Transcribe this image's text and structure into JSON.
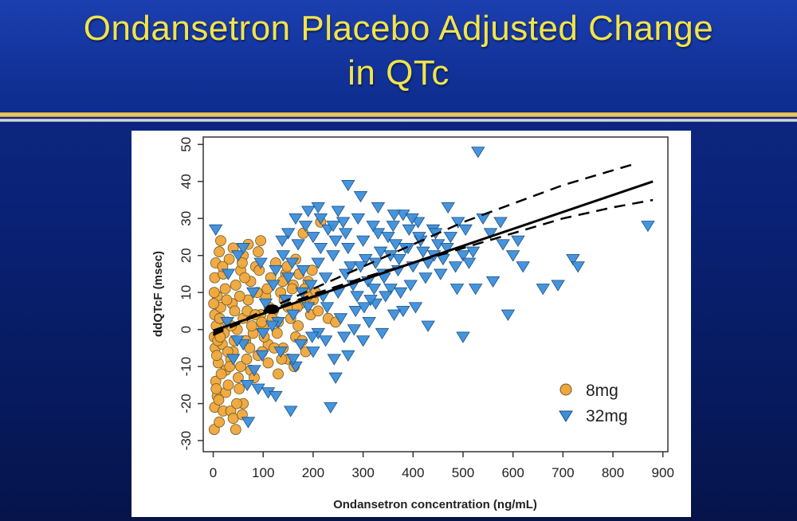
{
  "slide": {
    "title_line1": "Ondansetron Placebo Adjusted Change",
    "title_line2": "in QTc"
  },
  "colors": {
    "title_text": "#f2e44a",
    "series_8mg": "#f0a63a",
    "series_32mg": "#3b8fdc",
    "marker_edge": "#6b5a2a",
    "regression": "#000000"
  },
  "chart_data": {
    "type": "scatter",
    "xlabel": "Ondansetron concentration (ng/mL)",
    "ylabel": "ddQTcF (msec)",
    "xlim": [
      -20,
      910
    ],
    "ylim": [
      -33,
      52
    ],
    "xticks": [
      0,
      100,
      200,
      300,
      400,
      500,
      600,
      700,
      800,
      900
    ],
    "yticks": [
      -30,
      -20,
      -10,
      0,
      10,
      20,
      30,
      40,
      50
    ],
    "legend_position": "bottom-right",
    "series": [
      {
        "name": "8mg",
        "marker": "circle",
        "points": [
          [
            2,
            -27
          ],
          [
            45,
            -27
          ],
          [
            3,
            -21
          ],
          [
            20,
            -22
          ],
          [
            35,
            -22
          ],
          [
            8,
            -18
          ],
          [
            25,
            -17
          ],
          [
            60,
            -20
          ],
          [
            5,
            -14
          ],
          [
            30,
            -15
          ],
          [
            50,
            -13
          ],
          [
            75,
            -11
          ],
          [
            10,
            -9
          ],
          [
            35,
            -8
          ],
          [
            55,
            -10
          ],
          [
            90,
            -7
          ],
          [
            4,
            -5
          ],
          [
            18,
            -4
          ],
          [
            40,
            -6
          ],
          [
            65,
            -3
          ],
          [
            110,
            -4
          ],
          [
            140,
            -5
          ],
          [
            2,
            -2
          ],
          [
            22,
            -1
          ],
          [
            48,
            0
          ],
          [
            80,
            -1
          ],
          [
            100,
            1
          ],
          [
            130,
            2
          ],
          [
            165,
            -2
          ],
          [
            6,
            1
          ],
          [
            28,
            2
          ],
          [
            60,
            3
          ],
          [
            95,
            4
          ],
          [
            120,
            5
          ],
          [
            150,
            6
          ],
          [
            175,
            7
          ],
          [
            200,
            8
          ],
          [
            3,
            4
          ],
          [
            15,
            6
          ],
          [
            38,
            7
          ],
          [
            70,
            8
          ],
          [
            105,
            9
          ],
          [
            135,
            10
          ],
          [
            160,
            12
          ],
          [
            190,
            13
          ],
          [
            8,
            9
          ],
          [
            24,
            11
          ],
          [
            45,
            12
          ],
          [
            75,
            13
          ],
          [
            115,
            14
          ],
          [
            145,
            15
          ],
          [
            3,
            14
          ],
          [
            20,
            15
          ],
          [
            55,
            16
          ],
          [
            85,
            17
          ],
          [
            125,
            18
          ],
          [
            165,
            19
          ],
          [
            5,
            18
          ],
          [
            32,
            19
          ],
          [
            60,
            20
          ],
          [
            90,
            21
          ],
          [
            12,
            21
          ],
          [
            40,
            22
          ],
          [
            70,
            23
          ],
          [
            15,
            24
          ],
          [
            95,
            24
          ],
          [
            180,
            26
          ],
          [
            215,
            29
          ],
          [
            25,
            -11
          ],
          [
            110,
            -9
          ],
          [
            130,
            -12
          ],
          [
            150,
            -8
          ],
          [
            185,
            -6
          ],
          [
            12,
            -25
          ],
          [
            40,
            -24
          ],
          [
            58,
            -23
          ],
          [
            7,
            -7
          ],
          [
            16,
            -12
          ],
          [
            42,
            -3
          ],
          [
            68,
            5
          ],
          [
            88,
            10
          ],
          [
            102,
            -2
          ],
          [
            118,
            3
          ],
          [
            142,
            8
          ],
          [
            170,
            1
          ],
          [
            195,
            4
          ],
          [
            6,
            -16
          ],
          [
            27,
            8
          ],
          [
            52,
            -16
          ],
          [
            82,
            -13
          ],
          [
            13,
            3
          ],
          [
            33,
            -10
          ],
          [
            63,
            14
          ],
          [
            98,
            -6
          ],
          [
            128,
            -1
          ],
          [
            158,
            11
          ],
          [
            178,
            -3
          ],
          [
            205,
            10
          ],
          [
            2,
            10
          ],
          [
            9,
            -3
          ],
          [
            19,
            17
          ],
          [
            36,
            1
          ],
          [
            47,
            -20
          ],
          [
            77,
            1
          ],
          [
            92,
            16
          ],
          [
            112,
            6
          ],
          [
            137,
            -8
          ],
          [
            155,
            3
          ],
          [
            172,
            15
          ],
          [
            188,
            9
          ],
          [
            210,
            5
          ],
          [
            230,
            3
          ],
          [
            245,
            2
          ],
          [
            1,
            7
          ],
          [
            11,
            -19
          ],
          [
            29,
            -6
          ],
          [
            53,
            9
          ],
          [
            67,
            -8
          ],
          [
            84,
            4
          ],
          [
            108,
            11
          ],
          [
            122,
            -5
          ],
          [
            148,
            17
          ],
          [
            168,
            6
          ],
          [
            183,
            11
          ],
          [
            14,
            -2
          ],
          [
            43,
            5
          ],
          [
            58,
            18
          ],
          [
            73,
            -5
          ],
          [
            97,
            2
          ],
          [
            139,
            13
          ],
          [
            162,
            -10
          ],
          [
            198,
            16
          ]
        ]
      },
      {
        "name": "32mg",
        "marker": "triangle-down",
        "points": [
          [
            530,
            48
          ],
          [
            270,
            39
          ],
          [
            295,
            36
          ],
          [
            210,
            33
          ],
          [
            250,
            32
          ],
          [
            470,
            33
          ],
          [
            540,
            30
          ],
          [
            575,
            29
          ],
          [
            870,
            28
          ],
          [
            5,
            27
          ],
          [
            150,
            26
          ],
          [
            380,
            31
          ],
          [
            410,
            29
          ],
          [
            440,
            27
          ],
          [
            490,
            29
          ],
          [
            580,
            23
          ],
          [
            600,
            20
          ],
          [
            620,
            17
          ],
          [
            690,
            12
          ],
          [
            720,
            19
          ],
          [
            730,
            17
          ],
          [
            660,
            11
          ],
          [
            560,
            13
          ],
          [
            525,
            11
          ],
          [
            590,
            4
          ],
          [
            430,
            1
          ],
          [
            500,
            -2
          ],
          [
            380,
            5
          ],
          [
            355,
            11
          ],
          [
            325,
            7
          ],
          [
            300,
            -3
          ],
          [
            270,
            -7
          ],
          [
            245,
            -13
          ],
          [
            235,
            -21
          ],
          [
            155,
            -22
          ],
          [
            70,
            -25
          ],
          [
            90,
            -16
          ],
          [
            110,
            -17
          ],
          [
            125,
            -18
          ],
          [
            165,
            -10
          ],
          [
            200,
            -6
          ],
          [
            225,
            -3
          ],
          [
            40,
            -8
          ],
          [
            60,
            -4
          ],
          [
            100,
            -1
          ],
          [
            130,
            2
          ],
          [
            160,
            4
          ],
          [
            190,
            6
          ],
          [
            220,
            9
          ],
          [
            250,
            10
          ],
          [
            280,
            12
          ],
          [
            310,
            13
          ],
          [
            340,
            15
          ],
          [
            370,
            16
          ],
          [
            400,
            17
          ],
          [
            430,
            18
          ],
          [
            460,
            19
          ],
          [
            500,
            20
          ],
          [
            520,
            21
          ],
          [
            120,
            12
          ],
          [
            150,
            14
          ],
          [
            180,
            16
          ],
          [
            210,
            18
          ],
          [
            240,
            20
          ],
          [
            270,
            22
          ],
          [
            300,
            24
          ],
          [
            330,
            26
          ],
          [
            360,
            28
          ],
          [
            390,
            22
          ],
          [
            420,
            21
          ],
          [
            450,
            23
          ],
          [
            200,
            25
          ],
          [
            230,
            27
          ],
          [
            260,
            29
          ],
          [
            290,
            30
          ],
          [
            320,
            28
          ],
          [
            350,
            25
          ],
          [
            140,
            20
          ],
          [
            170,
            23
          ],
          [
            185,
            28
          ],
          [
            215,
            22
          ],
          [
            245,
            24
          ],
          [
            275,
            17
          ],
          [
            305,
            19
          ],
          [
            335,
            21
          ],
          [
            365,
            23
          ],
          [
            395,
            12
          ],
          [
            425,
            14
          ],
          [
            455,
            15
          ],
          [
            485,
            17
          ],
          [
            30,
            15
          ],
          [
            50,
            20
          ],
          [
            80,
            10
          ],
          [
            105,
            7
          ],
          [
            135,
            -6
          ],
          [
            160,
            -8
          ],
          [
            175,
            -4
          ],
          [
            210,
            -1
          ],
          [
            255,
            3
          ],
          [
            285,
            5
          ],
          [
            315,
            8
          ],
          [
            345,
            9
          ],
          [
            375,
            10
          ],
          [
            405,
            6
          ],
          [
            60,
            22
          ],
          [
            95,
            18
          ],
          [
            125,
            16
          ],
          [
            145,
            8
          ],
          [
            195,
            12
          ],
          [
            225,
            14
          ],
          [
            265,
            15
          ],
          [
            295,
            17
          ],
          [
            325,
            18
          ],
          [
            355,
            20
          ],
          [
            385,
            22
          ],
          [
            415,
            24
          ],
          [
            445,
            26
          ],
          [
            475,
            25
          ],
          [
            505,
            27
          ],
          [
            555,
            26
          ],
          [
            610,
            24
          ],
          [
            165,
            30
          ],
          [
            190,
            32
          ],
          [
            215,
            30
          ],
          [
            240,
            28
          ],
          [
            330,
            33
          ],
          [
            362,
            31
          ],
          [
            398,
            30
          ],
          [
            265,
            26
          ],
          [
            288,
            9
          ],
          [
            312,
            2
          ],
          [
            338,
            -1
          ],
          [
            362,
            4
          ],
          [
            228,
            6
          ],
          [
            198,
            -2
          ],
          [
            178,
            10
          ],
          [
            158,
            18
          ],
          [
            138,
            24
          ],
          [
            118,
            1
          ],
          [
            98,
            -7
          ],
          [
            82,
            -11
          ],
          [
            68,
            -15
          ],
          [
            48,
            -3
          ],
          [
            28,
            2
          ],
          [
            242,
            -8
          ],
          [
            262,
            -2
          ],
          [
            282,
            0
          ],
          [
            302,
            6
          ],
          [
            322,
            11
          ],
          [
            342,
            14
          ],
          [
            372,
            19
          ],
          [
            392,
            27
          ],
          [
            412,
            25
          ],
          [
            442,
            20
          ],
          [
            468,
            22
          ],
          [
            488,
            11
          ],
          [
            512,
            18
          ]
        ]
      },
      {
        "name": "",
        "marker": "line",
        "role": "regression fit",
        "points": [
          [
            0,
            -0.3
          ],
          [
            880,
            40
          ]
        ]
      },
      {
        "name": "",
        "marker": "dashed-line",
        "role": "upper confidence bound",
        "points": [
          [
            0,
            -1
          ],
          [
            100,
            5
          ],
          [
            200,
            11
          ],
          [
            300,
            17
          ],
          [
            400,
            23
          ],
          [
            500,
            29
          ],
          [
            600,
            34
          ],
          [
            700,
            39
          ],
          [
            800,
            43
          ],
          [
            850,
            45
          ]
        ]
      },
      {
        "name": "",
        "marker": "dashed-line",
        "role": "lower confidence bound",
        "points": [
          [
            0,
            -1.5
          ],
          [
            100,
            4.5
          ],
          [
            200,
            9.5
          ],
          [
            300,
            14
          ],
          [
            400,
            18
          ],
          [
            500,
            22
          ],
          [
            600,
            26
          ],
          [
            700,
            30
          ],
          [
            800,
            33
          ],
          [
            880,
            35
          ]
        ]
      },
      {
        "name": "",
        "marker": "circle",
        "role": "mean point",
        "points": [
          [
            118,
            5.5
          ]
        ]
      }
    ]
  }
}
